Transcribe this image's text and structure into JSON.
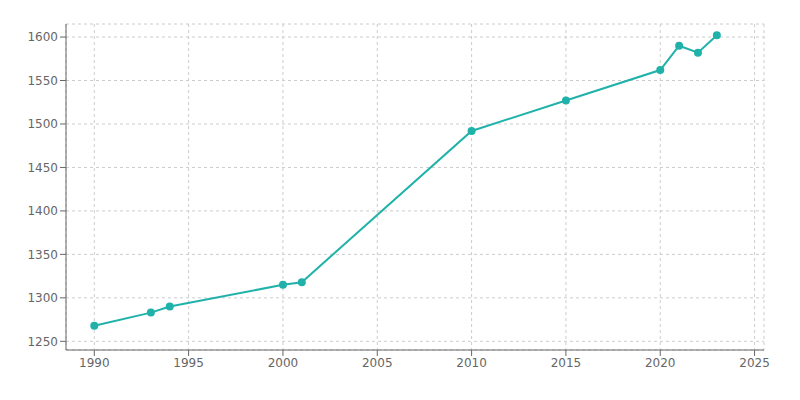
{
  "chart_data": {
    "type": "line",
    "x": [
      1990,
      1993,
      1994,
      2000,
      2001,
      2010,
      2015,
      2020,
      2021,
      2022,
      2023
    ],
    "values": [
      1268,
      1283,
      1290,
      1315,
      1318,
      1492,
      1527,
      1562,
      1590,
      1582,
      1602
    ],
    "color": "#20B2AA",
    "marker": "circle",
    "xlim": [
      1988.5,
      2025.5
    ],
    "ylim": [
      1240,
      1615
    ],
    "xticks": [
      1990,
      1995,
      2000,
      2005,
      2010,
      2015,
      2020,
      2025
    ],
    "yticks": [
      1250,
      1300,
      1350,
      1400,
      1450,
      1500,
      1550,
      1600
    ],
    "grid": true
  }
}
